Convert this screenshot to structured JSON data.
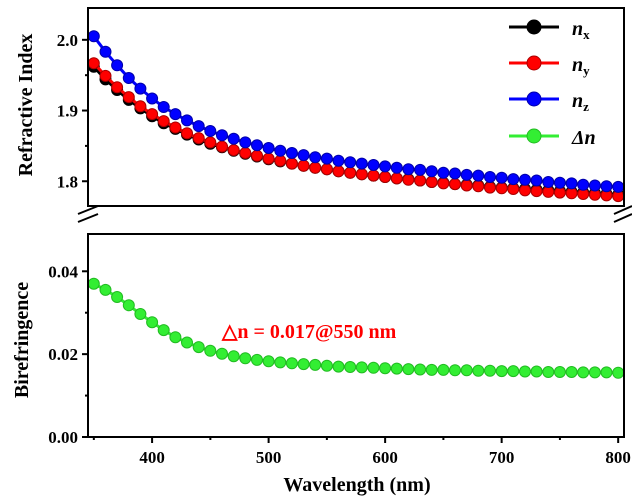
{
  "chart_data": {
    "type": "line",
    "xlabel": "Wavelength (nm)",
    "xlim": [
      345,
      805
    ],
    "xticks": [
      400,
      500,
      600,
      700,
      800
    ],
    "x_labels": [
      "400",
      "500",
      "600",
      "700",
      "800"
    ],
    "top_panel": {
      "ylabel": "Refractive Index",
      "ylim": [
        1.765,
        2.045
      ],
      "yticks": [
        1.8,
        1.9,
        2.0
      ],
      "y_labels": [
        "1.8",
        "1.9",
        "2.0"
      ],
      "series": [
        {
          "name": "n",
          "subscript": "x",
          "color": "#000000",
          "marker_fill": "#000000",
          "values_at": "n_x"
        },
        {
          "name": "n",
          "subscript": "y",
          "color": "#ff0000",
          "marker_fill": "#ff0000",
          "values_at": "n_y"
        },
        {
          "name": "n",
          "subscript": "z",
          "color": "#0000ff",
          "marker_fill": "#0000ff",
          "values_at": "n_z"
        }
      ]
    },
    "bottom_panel": {
      "ylabel": "Birefringence",
      "ylim": [
        0.0,
        0.049
      ],
      "yticks": [
        0.0,
        0.02,
        0.04
      ],
      "y_labels": [
        "0.00",
        "0.02",
        "0.04"
      ],
      "series": [
        {
          "name": "Δn",
          "color": "#33ee33",
          "marker_fill": "#33ee33",
          "values_at": "dn"
        }
      ],
      "annotation": {
        "text": "△n = 0.017@550 nm",
        "color": "#ff0000",
        "at_x": 410,
        "at_y": 0.0285
      }
    },
    "x": [
      350,
      360,
      370,
      380,
      390,
      400,
      410,
      420,
      430,
      440,
      450,
      460,
      470,
      480,
      490,
      500,
      510,
      520,
      530,
      540,
      550,
      560,
      570,
      580,
      590,
      600,
      610,
      620,
      630,
      640,
      650,
      660,
      670,
      680,
      690,
      700,
      710,
      720,
      730,
      740,
      750,
      760,
      770,
      780,
      790,
      800
    ],
    "n_x": [
      1.962,
      1.944,
      1.929,
      1.915,
      1.903,
      1.892,
      1.882,
      1.874,
      1.866,
      1.859,
      1.853,
      1.848,
      1.843,
      1.839,
      1.835,
      1.831,
      1.828,
      1.825,
      1.822,
      1.819,
      1.817,
      1.814,
      1.812,
      1.81,
      1.808,
      1.806,
      1.804,
      1.803,
      1.801,
      1.799,
      1.798,
      1.796,
      1.795,
      1.794,
      1.792,
      1.791,
      1.79,
      1.789,
      1.788,
      1.787,
      1.786,
      1.785,
      1.784,
      1.783,
      1.782,
      1.781
    ],
    "n_y": [
      1.967,
      1.949,
      1.933,
      1.919,
      1.906,
      1.895,
      1.885,
      1.876,
      1.868,
      1.861,
      1.855,
      1.849,
      1.844,
      1.84,
      1.836,
      1.832,
      1.829,
      1.825,
      1.822,
      1.819,
      1.817,
      1.814,
      1.812,
      1.81,
      1.808,
      1.806,
      1.804,
      1.802,
      1.801,
      1.799,
      1.797,
      1.796,
      1.794,
      1.793,
      1.791,
      1.79,
      1.789,
      1.787,
      1.786,
      1.785,
      1.784,
      1.783,
      1.782,
      1.781,
      1.78,
      1.779
    ],
    "n_z": [
      2.005,
      1.983,
      1.964,
      1.946,
      1.931,
      1.917,
      1.905,
      1.895,
      1.886,
      1.878,
      1.871,
      1.865,
      1.86,
      1.855,
      1.851,
      1.847,
      1.843,
      1.84,
      1.837,
      1.834,
      1.832,
      1.829,
      1.827,
      1.825,
      1.823,
      1.821,
      1.819,
      1.817,
      1.816,
      1.814,
      1.812,
      1.811,
      1.809,
      1.808,
      1.806,
      1.805,
      1.803,
      1.802,
      1.801,
      1.799,
      1.798,
      1.797,
      1.795,
      1.794,
      1.793,
      1.792
    ],
    "dn": [
      0.037,
      0.0355,
      0.0338,
      0.0318,
      0.0297,
      0.0277,
      0.0258,
      0.0241,
      0.0228,
      0.0217,
      0.0208,
      0.0201,
      0.0195,
      0.019,
      0.0186,
      0.0183,
      0.018,
      0.0178,
      0.0176,
      0.0174,
      0.0172,
      0.017,
      0.0169,
      0.0168,
      0.0167,
      0.0166,
      0.0165,
      0.0164,
      0.0163,
      0.0162,
      0.0162,
      0.0161,
      0.0161,
      0.016,
      0.016,
      0.0159,
      0.0159,
      0.0158,
      0.0158,
      0.0157,
      0.0157,
      0.0157,
      0.0156,
      0.0156,
      0.0156,
      0.0155
    ]
  }
}
